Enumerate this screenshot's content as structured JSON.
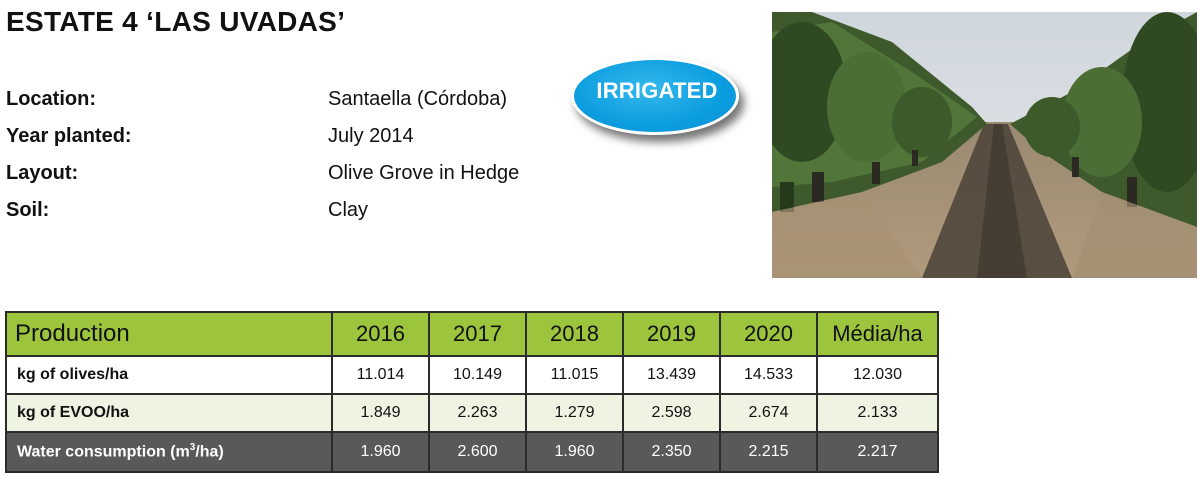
{
  "title": "ESTATE 4 ‘LAS UVADAS’",
  "info": [
    {
      "label": "Location:",
      "value": "Santaella (Córdoba)"
    },
    {
      "label": "Year planted:",
      "value": "July 2014"
    },
    {
      "label": "Layout:",
      "value": "Olive Grove in Hedge"
    },
    {
      "label": "Soil:",
      "value": "Clay"
    }
  ],
  "badge": "IRRIGATED",
  "colors": {
    "badge_blue": "#0b9de0",
    "header_green": "#9cc43c",
    "dark_row": "#595959"
  },
  "table": {
    "headers": [
      "Production",
      "2016",
      "2017",
      "2018",
      "2019",
      "2020",
      "Média/ha"
    ],
    "rows": [
      {
        "label": "kg of olives/ha",
        "values": [
          "11.014",
          "10.149",
          "11.015",
          "13.439",
          "14.533",
          "12.030"
        ]
      },
      {
        "label": "kg of EVOO/ha",
        "values": [
          "1.849",
          "2.263",
          "1.279",
          "2.598",
          "2.674",
          "2.133"
        ]
      },
      {
        "label_main": "Water consumption (m",
        "label_sup": "3",
        "label_end": "/ha)",
        "values": [
          "1.960",
          "2.600",
          "1.960",
          "2.350",
          "2.215",
          "2.217"
        ]
      }
    ]
  }
}
